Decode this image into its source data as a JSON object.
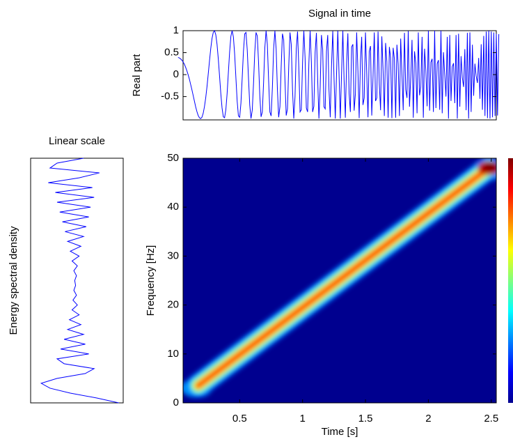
{
  "chart_data": [
    {
      "type": "line",
      "title": "Signal in time",
      "ylabel": "Real part",
      "color": "#0000ff",
      "xlim": [
        0.05,
        2.54
      ],
      "ylim": [
        -1.03,
        1
      ],
      "yticks": [
        -0.5,
        0,
        0.5,
        1
      ],
      "x": [
        0.01,
        0.02,
        0.03,
        0.04,
        0.05,
        0.06,
        0.07,
        0.08,
        0.09,
        0.1,
        0.11,
        0.12,
        0.13,
        0.14,
        0.15,
        0.16,
        0.17,
        0.18,
        0.19,
        0.2,
        0.21,
        0.22,
        0.23,
        0.24,
        0.25,
        0.26,
        0.27,
        0.28,
        0.29,
        0.3,
        0.31,
        0.32,
        0.33,
        0.34,
        0.35,
        0.36,
        0.37,
        0.38,
        0.39,
        0.4,
        0.41,
        0.42,
        0.43,
        0.44,
        0.45,
        0.46,
        0.47,
        0.48,
        0.49,
        0.5,
        0.51,
        0.52,
        0.53,
        0.54,
        0.55,
        0.56,
        0.57,
        0.58,
        0.59,
        0.6,
        0.61,
        0.62,
        0.63,
        0.64,
        0.65,
        0.66,
        0.67,
        0.68,
        0.69,
        0.7,
        0.71,
        0.72,
        0.73,
        0.74,
        0.75,
        0.76,
        0.77,
        0.78,
        0.79,
        0.8,
        0.81,
        0.82,
        0.83,
        0.84,
        0.85,
        0.86,
        0.87,
        0.88,
        0.89,
        0.9,
        0.91,
        0.92,
        0.93,
        0.94,
        0.95,
        0.96,
        0.97,
        0.98,
        0.99,
        1,
        1.01,
        1.02,
        1.03,
        1.04,
        1.05,
        1.06,
        1.07,
        1.08,
        1.09,
        1.1,
        1.11,
        1.12,
        1.13,
        1.14,
        1.15,
        1.16,
        1.17,
        1.18,
        1.19,
        1.2,
        1.21,
        1.22,
        1.23,
        1.24,
        1.25,
        1.26,
        1.27,
        1.28,
        1.29,
        1.3,
        1.31,
        1.32,
        1.33,
        1.34,
        1.35,
        1.36,
        1.37,
        1.38,
        1.39,
        1.4,
        1.41,
        1.42,
        1.43,
        1.44,
        1.45,
        1.46,
        1.47,
        1.48,
        1.49,
        1.5,
        1.51,
        1.52,
        1.53,
        1.54,
        1.55,
        1.56,
        1.57,
        1.58,
        1.59,
        1.6,
        1.61,
        1.62,
        1.63,
        1.64,
        1.65,
        1.66,
        1.67,
        1.68,
        1.69,
        1.7,
        1.71,
        1.72,
        1.73,
        1.74,
        1.75,
        1.76,
        1.77,
        1.78,
        1.79,
        1.8,
        1.81,
        1.82,
        1.83,
        1.84,
        1.85,
        1.86,
        1.87,
        1.88,
        1.89,
        1.9,
        1.91,
        1.92,
        1.93,
        1.94,
        1.95,
        1.96,
        1.97,
        1.98,
        1.99,
        2,
        2.01,
        2.02,
        2.03,
        2.04,
        2.05,
        2.06,
        2.07,
        2.08,
        2.09,
        2.1,
        2.11,
        2.12,
        2.13,
        2.14,
        2.15,
        2.16,
        2.17,
        2.18,
        2.19,
        2.2,
        2.21,
        2.22,
        2.23,
        2.24,
        2.25,
        2.26,
        2.27,
        2.28,
        2.29,
        2.3,
        2.31,
        2.32,
        2.33,
        2.34,
        2.35,
        2.36,
        2.37,
        2.38,
        2.39,
        2.4,
        2.41,
        2.42,
        2.43,
        2.44,
        2.45,
        2.46,
        2.47,
        2.48,
        2.49,
        2.5,
        2.51,
        2.52,
        2.53,
        2.54,
        2.55,
        2.56
      ],
      "values": [
        0.39,
        0.38,
        0.36,
        0.33,
        0.29,
        0.24,
        0.17,
        0.09,
        0,
        -0.1,
        -0.22,
        -0.34,
        -0.47,
        -0.6,
        -0.73,
        -0.84,
        -0.93,
        -0.98,
        -1,
        -0.97,
        -0.88,
        -0.73,
        -0.53,
        -0.28,
        0.01,
        0.31,
        0.59,
        0.82,
        0.96,
        1,
        0.91,
        0.69,
        0.36,
        -0.03,
        -0.43,
        -0.76,
        -0.96,
        -0.98,
        -0.8,
        -0.44,
        0.04,
        0.51,
        0.87,
        1,
        0.86,
        0.47,
        -0.07,
        -0.6,
        -0.94,
        -0.97,
        -0.65,
        -0.08,
        0.53,
        0.93,
        0.96,
        0.57,
        -0.07,
        -0.69,
        -1,
        -0.81,
        -0.21,
        0.51,
        0.96,
        0.88,
        0.29,
        -0.48,
        -0.96,
        -0.85,
        -0.19,
        0.61,
        1,
        0.69,
        -0.12,
        -0.85,
        -0.94,
        -0.3,
        0.59,
        1,
        0.58,
        -0.34,
        -0.97,
        -0.73,
        0.18,
        0.93,
        0.79,
        -0.13,
        -0.93,
        -0.78,
        0.18,
        0.96,
        0.69,
        -0.34,
        -1,
        -0.5,
        0.59,
        0.98,
        0.17,
        -0.85,
        -0.8,
        0.28,
        1,
        0.38,
        -0.76,
        -0.85,
        0.25,
        1,
        0.29,
        -0.85,
        -0.72,
        0.51,
        0.95,
        -0.1,
        -1,
        -0.28,
        0.9,
        0.57,
        -0.73,
        -0.78,
        0.53,
        0.9,
        -0.34,
        -0.97,
        0.18,
        0.99,
        -0.07,
        -1,
        0.01,
        1,
        0,
        -1,
        0.04,
        1,
        -0.12,
        -0.98,
        0.25,
        0.94,
        -0.43,
        -0.85,
        0.63,
        0.69,
        -0.82,
        -0.44,
        0.96,
        0.09,
        -0.99,
        0.31,
        0.86,
        -0.69,
        -0.53,
        0.96,
        0.03,
        -0.97,
        0.53,
        0.65,
        -0.93,
        -0.06,
        0.96,
        -0.6,
        -0.53,
        0.98,
        -0.22,
        -0.81,
        0.87,
        0.09,
        -0.94,
        0.72,
        0.29,
        -0.98,
        0.63,
        0.38,
        -0.99,
        0.61,
        0.36,
        -0.98,
        0.68,
        0.24,
        -0.94,
        0.82,
        0,
        -0.81,
        0.95,
        -0.34,
        -0.53,
        0.99,
        -0.73,
        -0.06,
        0.79,
        -0.98,
        0.53,
        0.26,
        -0.88,
        0.96,
        -0.47,
        -0.28,
        0.86,
        -0.98,
        0.59,
        0.09,
        -0.72,
        1,
        -0.82,
        0.28,
        0.36,
        -0.85,
        1,
        -0.76,
        0.25,
        0.33,
        -0.8,
        1,
        -0.88,
        0.51,
        0,
        -0.5,
        0.86,
        -1,
        0.9,
        -0.6,
        0.18,
        0.26,
        -0.65,
        0.9,
        -1,
        0.93,
        -0.73,
        0.42,
        -0.07,
        -0.28,
        0.58,
        -0.81,
        0.95,
        -1,
        0.96,
        -0.85,
        0.68,
        -0.48,
        0.25,
        -0.03,
        -0.19,
        0.38,
        -0.55,
        0.69,
        -0.8,
        0.88,
        -0.94,
        0.98,
        -0.99,
        1,
        -1,
        0.98,
        -0.97,
        0.96,
        -0.94,
        0.93,
        -0.93,
        0.92
      ]
    },
    {
      "type": "line",
      "orientation": "vertical",
      "title": "Linear scale",
      "ylabel": "Energy spectral density",
      "color": "#0000ff",
      "xlim": [
        0,
        1.05
      ],
      "ylim": [
        0,
        50
      ],
      "y": [
        0,
        1,
        2,
        3,
        4,
        5,
        6,
        7,
        8,
        9,
        10,
        11,
        12,
        13,
        14,
        15,
        16,
        17,
        18,
        19,
        20,
        21,
        22,
        23,
        24,
        25,
        26,
        27,
        28,
        29,
        30,
        31,
        32,
        33,
        34,
        35,
        36,
        37,
        38,
        39,
        40,
        41,
        42,
        43,
        44,
        45,
        46,
        47,
        48,
        49,
        50
      ],
      "values": [
        1,
        0.75,
        0.45,
        0.22,
        0.12,
        0.3,
        0.62,
        0.72,
        0.38,
        0.3,
        0.66,
        0.34,
        0.62,
        0.38,
        0.6,
        0.42,
        0.57,
        0.44,
        0.55,
        0.47,
        0.53,
        0.48,
        0.52,
        0.49,
        0.51,
        0.5,
        0.52,
        0.49,
        0.53,
        0.47,
        0.55,
        0.45,
        0.57,
        0.42,
        0.6,
        0.39,
        0.63,
        0.36,
        0.66,
        0.33,
        0.68,
        0.3,
        0.72,
        0.28,
        0.7,
        0.2,
        0.55,
        0.78,
        0.22,
        0.3,
        0.6
      ]
    },
    {
      "type": "heatmap",
      "xlabel": "Time [s]",
      "ylabel": "Frequency [Hz]",
      "colormap": "jet",
      "xlim": [
        0.05,
        2.54
      ],
      "ylim": [
        0,
        50
      ],
      "xticks": [
        0.5,
        1,
        1.5,
        2,
        2.5
      ],
      "yticks": [
        0,
        10,
        20,
        30,
        40,
        50
      ],
      "ridge_x": [
        0.17,
        2.48
      ],
      "ridge_y": [
        3.5,
        48
      ]
    }
  ]
}
